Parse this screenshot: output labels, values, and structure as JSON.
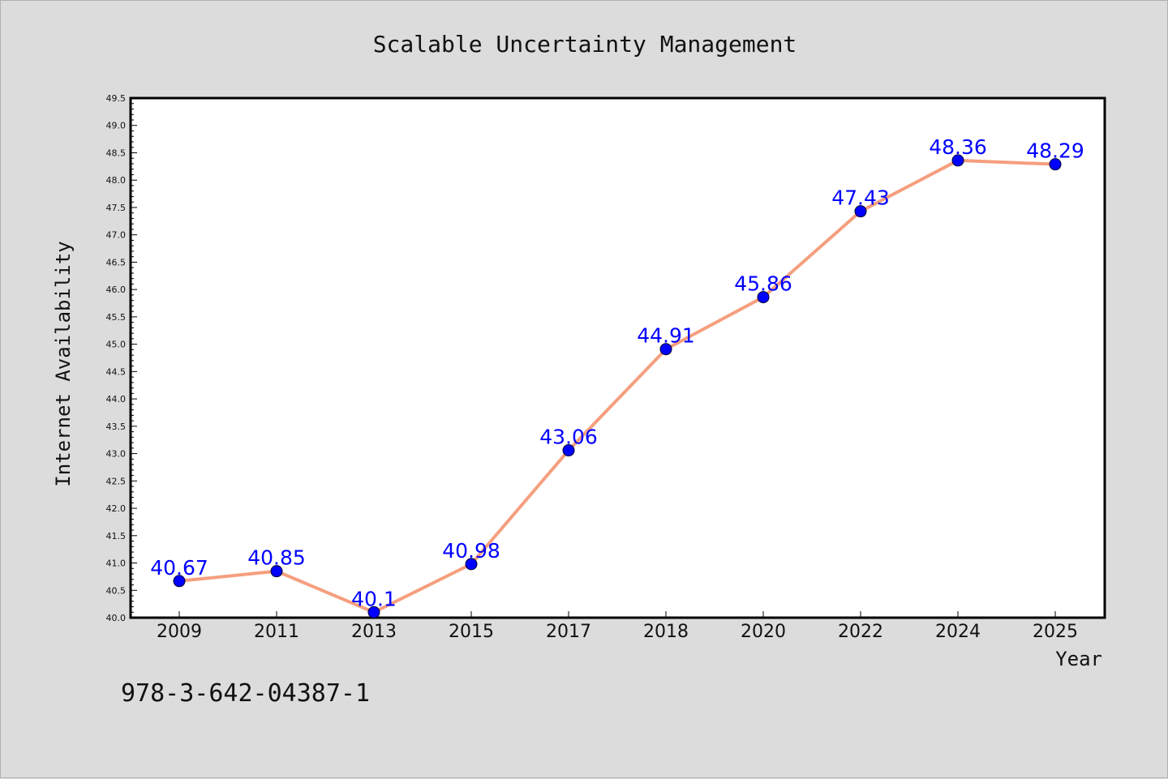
{
  "chart_data": {
    "type": "line",
    "title": "Scalable Uncertainty Management",
    "xlabel": "Year",
    "ylabel": "Internet Availability",
    "categories": [
      "2009",
      "2011",
      "2013",
      "2015",
      "2017",
      "2018",
      "2020",
      "2022",
      "2024",
      "2025"
    ],
    "series": [
      {
        "values": [
          40.67,
          40.85,
          40.1,
          40.98,
          43.06,
          44.91,
          45.86,
          47.43,
          48.36,
          48.29
        ],
        "labels": [
          "40.67",
          "40.85",
          "40.1",
          "40.98",
          "43.06",
          "44.91",
          "45.86",
          "47.43",
          "48.36",
          "48.29"
        ],
        "line_color": "#f59f7e",
        "marker_color": "#0000ff",
        "label_color": "#0000ff"
      }
    ],
    "ylim": [
      40.0,
      49.5
    ],
    "yticks": [
      "40.0",
      "40.5",
      "41.0",
      "41.5",
      "42.0",
      "42.5",
      "43.0",
      "43.5",
      "44.0",
      "44.5",
      "45.0",
      "45.5",
      "46.0",
      "46.5",
      "47.0",
      "47.5",
      "48.0",
      "48.5",
      "49.0",
      "49.5"
    ],
    "grid": false,
    "legend": "none"
  },
  "footer": {
    "note": "978-3-642-04387-1"
  },
  "colors": {
    "background": "#dcdcdc",
    "plot_background": "#ffffff"
  }
}
